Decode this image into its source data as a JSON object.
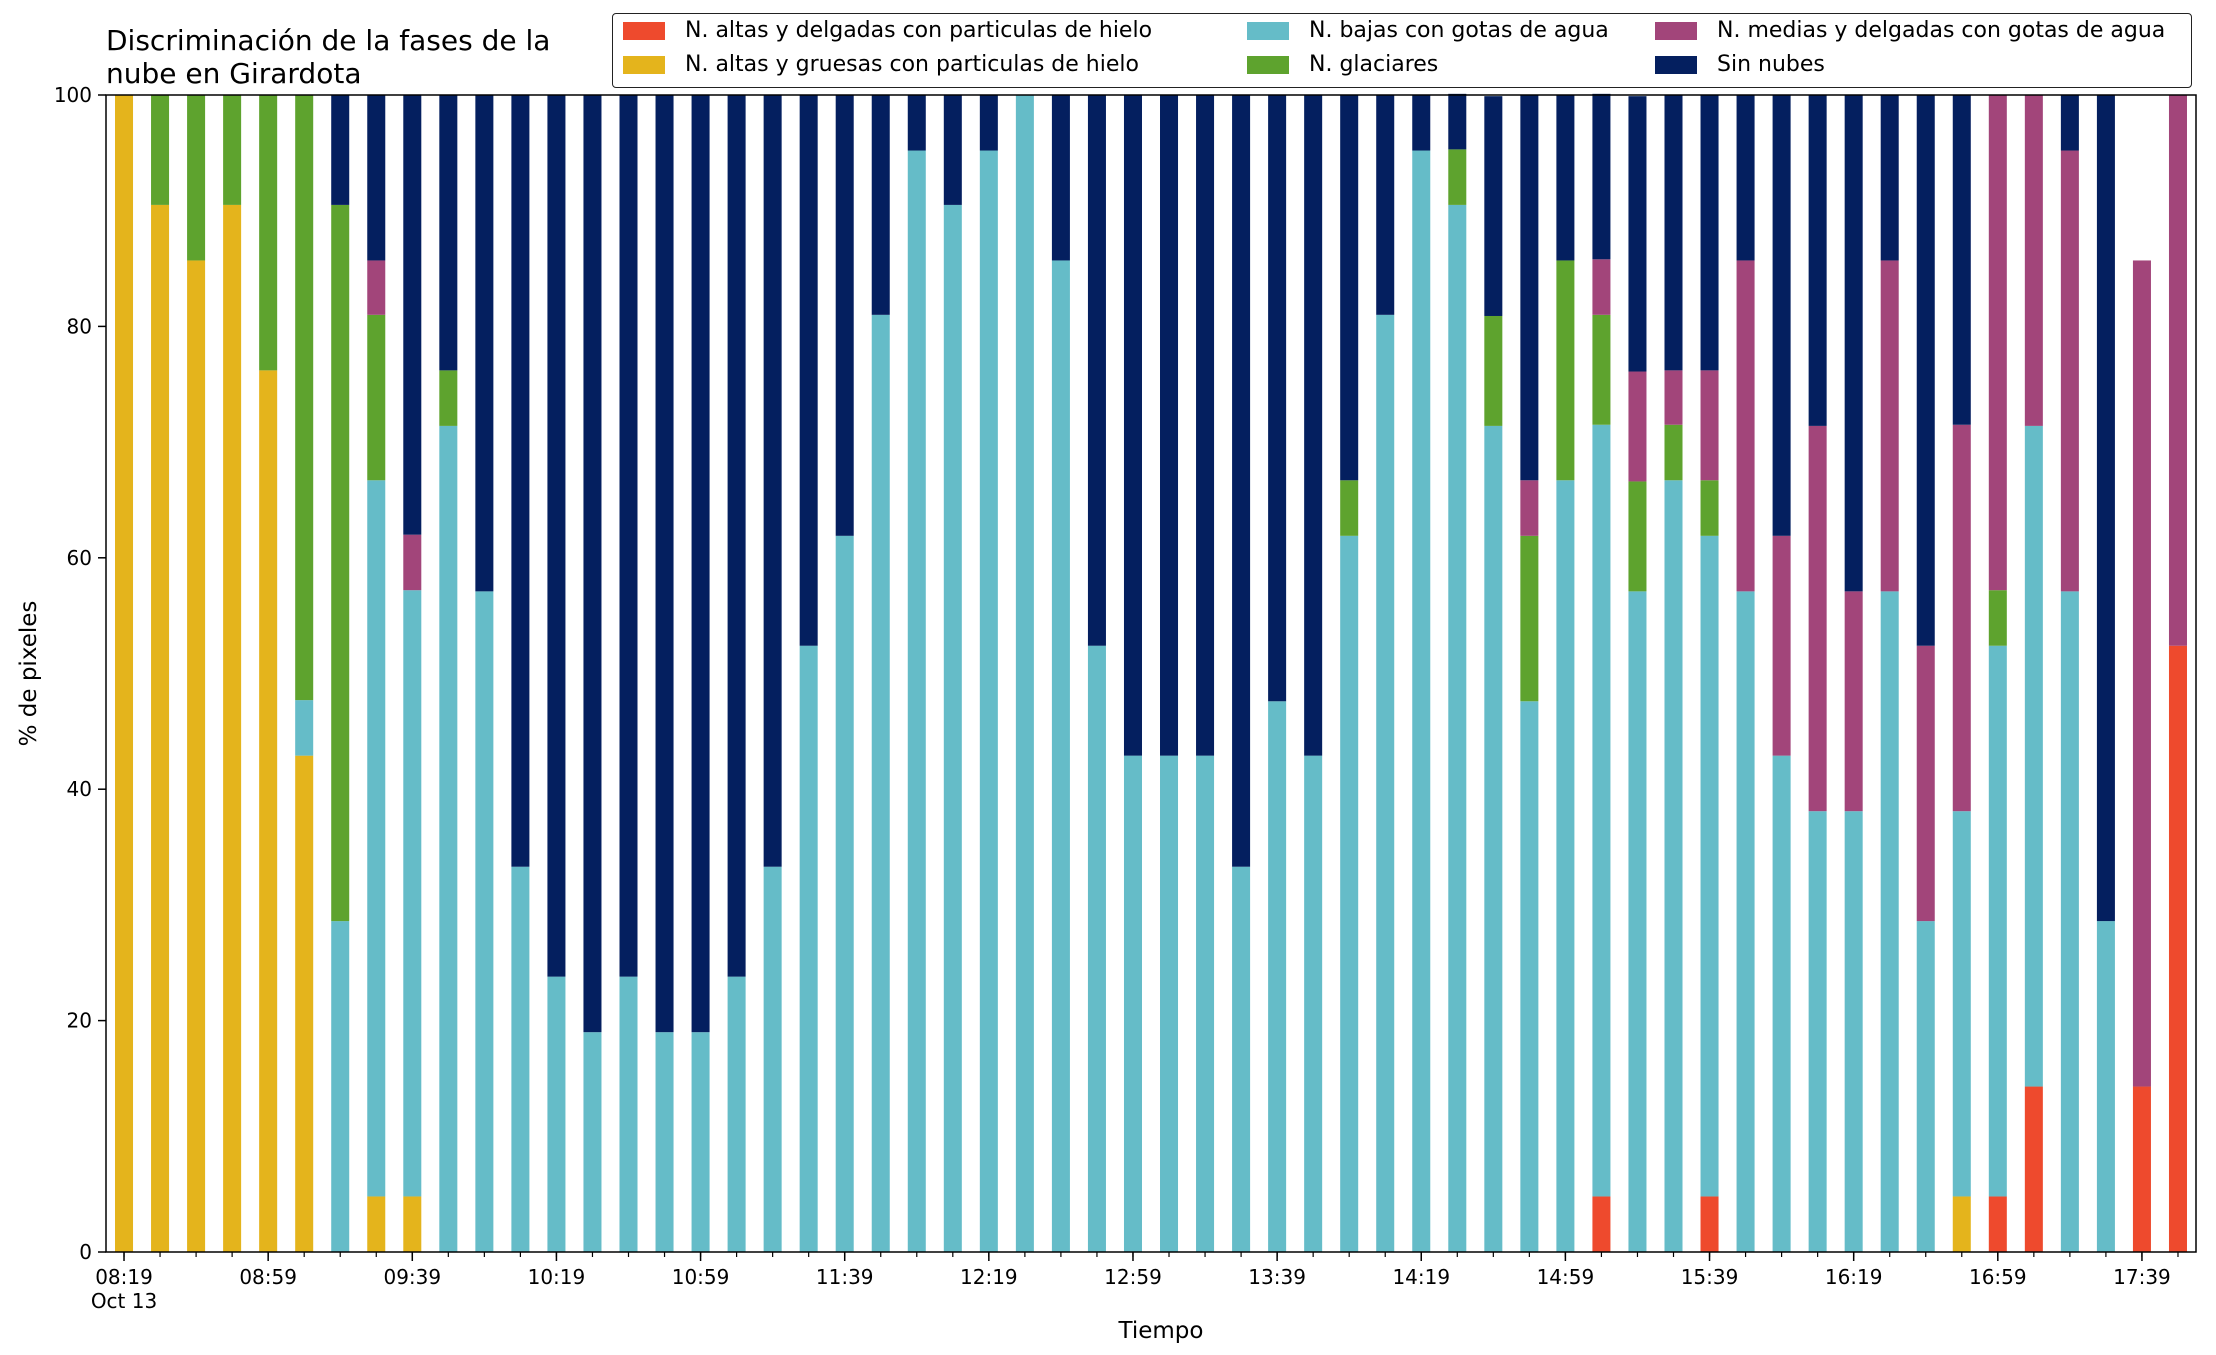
{
  "chart_data": {
    "type": "bar",
    "stacked": true,
    "title": "Discriminación de la fases de la nube en Girardota",
    "xlabel": "Tiempo",
    "ylabel": "% de pixeles",
    "ylim": [
      0,
      100
    ],
    "yticks": [
      0,
      20,
      40,
      60,
      80,
      100
    ],
    "grid": false,
    "legend_position": "top",
    "x_tick_labels": [
      {
        "index": 0,
        "label": "08:19",
        "sublabel": "Oct 13"
      },
      {
        "index": 4,
        "label": "08:59"
      },
      {
        "index": 8,
        "label": "09:39"
      },
      {
        "index": 12,
        "label": "10:19"
      },
      {
        "index": 16,
        "label": "10:59"
      },
      {
        "index": 20,
        "label": "11:39"
      },
      {
        "index": 24,
        "label": "12:19"
      },
      {
        "index": 28,
        "label": "12:59"
      },
      {
        "index": 32,
        "label": "13:39"
      },
      {
        "index": 36,
        "label": "14:19"
      },
      {
        "index": 40,
        "label": "14:59"
      },
      {
        "index": 44,
        "label": "15:39"
      },
      {
        "index": 48,
        "label": "16:19"
      },
      {
        "index": 52,
        "label": "16:59"
      },
      {
        "index": 56,
        "label": "17:39"
      }
    ],
    "categories": [
      "08:19",
      "08:29",
      "08:39",
      "08:49",
      "08:59",
      "09:09",
      "09:19",
      "09:29",
      "09:39",
      "09:49",
      "09:59",
      "10:09",
      "10:19",
      "10:29",
      "10:39",
      "10:49",
      "10:59",
      "11:09",
      "11:19",
      "11:29",
      "11:39",
      "11:49",
      "11:59",
      "12:09",
      "12:19",
      "12:29",
      "12:39",
      "12:49",
      "12:59",
      "13:09",
      "13:19",
      "13:29",
      "13:39",
      "13:49",
      "13:59",
      "14:09",
      "14:19",
      "14:29",
      "14:39",
      "14:49",
      "14:59",
      "15:09",
      "15:19",
      "15:29",
      "15:39",
      "15:49",
      "15:59",
      "16:09",
      "16:19",
      "16:29",
      "16:39",
      "16:49",
      "16:59",
      "17:09",
      "17:19",
      "17:29",
      "17:39",
      "17:49"
    ],
    "series": [
      {
        "name": "N. altas y delgadas con particulas de hielo",
        "color": "#ee4a2d",
        "values": [
          0,
          0,
          0,
          0,
          0,
          0,
          0,
          0,
          0,
          0,
          0,
          0,
          0,
          0,
          0,
          0,
          0,
          0,
          0,
          0,
          0,
          0,
          0,
          0,
          0,
          0,
          0,
          0,
          0,
          0,
          0,
          0,
          0,
          0,
          0,
          0,
          0,
          0,
          0,
          0,
          0,
          4.8,
          0,
          0,
          4.8,
          0,
          0,
          0,
          0,
          0,
          0,
          0,
          4.8,
          14.3,
          0,
          0,
          14.3,
          52.4
        ]
      },
      {
        "name": "N. altas y gruesas con particulas de hielo",
        "color": "#e4b41c",
        "values": [
          100,
          90.5,
          85.7,
          90.5,
          76.2,
          42.9,
          0,
          4.8,
          4.8,
          0,
          0,
          0,
          0,
          0,
          0,
          0,
          0,
          0,
          0,
          0,
          0,
          0,
          0,
          0,
          0,
          0,
          0,
          0,
          0,
          0,
          0,
          0,
          0,
          0,
          0,
          0,
          0,
          0,
          0,
          0,
          0,
          0,
          0,
          0,
          0,
          0,
          0,
          0,
          0,
          0,
          0,
          4.8,
          0,
          0,
          0,
          0,
          0,
          0
        ]
      },
      {
        "name": "N. bajas con gotas de agua",
        "color": "#65bcc8",
        "values": [
          0,
          0,
          0,
          0,
          0,
          4.8,
          28.6,
          61.9,
          52.4,
          71.4,
          57.1,
          33.3,
          23.8,
          19.0,
          23.8,
          19.0,
          19.0,
          23.8,
          33.3,
          52.4,
          61.9,
          81.0,
          95.2,
          90.5,
          95.2,
          100,
          85.7,
          52.4,
          42.9,
          42.9,
          42.9,
          33.3,
          47.6,
          42.9,
          61.9,
          81.0,
          95.2,
          90.5,
          71.4,
          47.6,
          66.7,
          66.7,
          57.1,
          66.7,
          57.1,
          57.1,
          42.9,
          38.1,
          38.1,
          57.1,
          28.6,
          33.3,
          47.6,
          57.1,
          57.1,
          28.6,
          0,
          0
        ]
      },
      {
        "name": "N. glaciares",
        "color": "#5ea32e",
        "values": [
          0,
          9.5,
          14.3,
          9.5,
          23.8,
          52.3,
          61.9,
          14.3,
          0,
          4.8,
          0,
          0,
          0,
          0,
          0,
          0,
          0,
          0,
          0,
          0,
          0,
          0,
          0,
          0,
          0,
          0,
          0,
          0,
          0,
          0,
          0,
          0,
          0,
          0,
          4.8,
          0,
          0,
          4.8,
          9.5,
          14.3,
          19.0,
          9.5,
          9.5,
          4.8,
          4.8,
          0,
          0,
          0,
          0,
          0,
          0,
          0,
          4.8,
          0,
          0,
          0,
          0,
          0
        ]
      },
      {
        "name": "N. medias y delgadas con gotas de agua",
        "color": "#a2457a",
        "values": [
          0,
          0,
          0,
          0,
          0,
          0,
          0,
          4.7,
          4.8,
          0,
          0,
          0,
          0,
          0,
          0,
          0,
          0,
          0,
          0,
          0,
          0,
          0,
          0,
          0,
          0,
          0,
          0,
          0,
          0,
          0,
          0,
          0,
          0,
          0,
          0,
          0,
          0,
          0,
          0,
          4.8,
          0,
          4.8,
          9.5,
          4.7,
          9.5,
          28.6,
          19.0,
          33.3,
          19.0,
          28.6,
          23.8,
          33.4,
          42.8,
          28.6,
          38.1,
          0,
          71.4,
          47.6
        ]
      },
      {
        "name": "Sin nubes",
        "color": "#041f5f",
        "values": [
          0,
          0,
          0,
          0,
          0,
          0,
          9.5,
          14.3,
          38.0,
          23.8,
          42.9,
          66.7,
          76.2,
          81.0,
          76.2,
          81.0,
          81.0,
          76.2,
          66.7,
          47.6,
          38.1,
          19.0,
          4.8,
          9.5,
          4.8,
          0,
          14.3,
          47.6,
          57.1,
          57.1,
          57.1,
          66.7,
          52.4,
          57.1,
          33.3,
          19.0,
          4.8,
          4.8,
          19.0,
          33.3,
          14.3,
          14.3,
          23.8,
          23.8,
          23.8,
          14.3,
          38.1,
          28.6,
          42.9,
          14.3,
          47.6,
          28.5,
          0,
          0,
          4.8,
          71.4,
          0,
          0
        ]
      }
    ]
  }
}
